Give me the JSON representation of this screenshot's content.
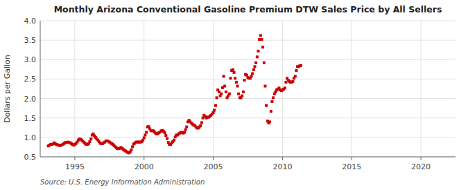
{
  "chart_data": {
    "type": "scatter",
    "title": "Monthly Arizona Conventional Gasoline Premium DTW Sales Price by All Sellers",
    "ylabel": "Dollars per Gallon",
    "source": "Source: U.S. Energy Information Administration",
    "color": "#cc0000",
    "marker": "square",
    "grid": true,
    "xlim": [
      1992.5,
      2022.5
    ],
    "ylim": [
      0.5,
      4.0
    ],
    "xticks": [
      1995,
      2000,
      2005,
      2010,
      2015,
      2020
    ],
    "yticks": [
      0.5,
      {
        "value": 1.0,
        "label": "1.0"
      },
      1.5,
      {
        "value": 2.0,
        "label": "2.0"
      },
      2.5,
      {
        "value": 3.0,
        "label": "3.0"
      },
      3.5,
      {
        "value": 4.0,
        "label": "4.0"
      }
    ],
    "x": [
      1993.08,
      1993.17,
      1993.25,
      1993.33,
      1993.42,
      1993.5,
      1993.58,
      1993.67,
      1993.75,
      1993.83,
      1993.92,
      1994.0,
      1994.08,
      1994.17,
      1994.25,
      1994.33,
      1994.42,
      1994.5,
      1994.58,
      1994.67,
      1994.75,
      1994.83,
      1994.92,
      1995.0,
      1995.08,
      1995.17,
      1995.25,
      1995.33,
      1995.42,
      1995.5,
      1995.58,
      1995.67,
      1995.75,
      1995.83,
      1995.92,
      1996.0,
      1996.08,
      1996.17,
      1996.25,
      1996.33,
      1996.42,
      1996.5,
      1996.58,
      1996.67,
      1996.75,
      1996.83,
      1996.92,
      1997.0,
      1997.08,
      1997.17,
      1997.25,
      1997.33,
      1997.42,
      1997.5,
      1997.58,
      1997.67,
      1997.75,
      1997.83,
      1997.92,
      1998.0,
      1998.08,
      1998.17,
      1998.25,
      1998.33,
      1998.42,
      1998.5,
      1998.58,
      1998.67,
      1998.75,
      1998.83,
      1998.92,
      1999.0,
      1999.08,
      1999.17,
      1999.25,
      1999.33,
      1999.42,
      1999.5,
      1999.58,
      1999.67,
      1999.75,
      1999.83,
      1999.92,
      2000.0,
      2000.08,
      2000.17,
      2000.25,
      2000.33,
      2000.42,
      2000.5,
      2000.58,
      2000.67,
      2000.75,
      2000.83,
      2000.92,
      2001.0,
      2001.08,
      2001.17,
      2001.25,
      2001.33,
      2001.42,
      2001.5,
      2001.58,
      2001.67,
      2001.75,
      2001.83,
      2001.92,
      2002.0,
      2002.08,
      2002.17,
      2002.25,
      2002.33,
      2002.42,
      2002.5,
      2002.58,
      2002.67,
      2002.75,
      2002.83,
      2002.92,
      2003.0,
      2003.08,
      2003.17,
      2003.25,
      2003.33,
      2003.42,
      2003.5,
      2003.58,
      2003.67,
      2003.75,
      2003.83,
      2003.92,
      2004.0,
      2004.08,
      2004.17,
      2004.25,
      2004.33,
      2004.42,
      2004.5,
      2004.58,
      2004.67,
      2004.75,
      2004.83,
      2004.92,
      2005.0,
      2005.08,
      2005.17,
      2005.25,
      2005.33,
      2005.42,
      2005.5,
      2005.58,
      2005.67,
      2005.75,
      2005.83,
      2005.92,
      2006.0,
      2006.08,
      2006.17,
      2006.25,
      2006.33,
      2006.42,
      2006.5,
      2006.58,
      2006.67,
      2006.75,
      2006.83,
      2006.92,
      2007.0,
      2007.08,
      2007.17,
      2007.25,
      2007.33,
      2007.42,
      2007.5,
      2007.58,
      2007.67,
      2007.75,
      2007.83,
      2007.92,
      2008.0,
      2008.08,
      2008.17,
      2008.25,
      2008.33,
      2008.42,
      2008.5,
      2008.58,
      2008.67,
      2008.75,
      2008.83,
      2008.92,
      2009.0,
      2009.08,
      2009.17,
      2009.25,
      2009.33,
      2009.42,
      2009.5,
      2009.58,
      2009.67,
      2009.75,
      2009.83,
      2009.92,
      2010.0,
      2010.08,
      2010.17,
      2010.25,
      2010.33,
      2010.42,
      2010.5,
      2010.58,
      2010.67,
      2010.75,
      2010.83,
      2010.92,
      2011.0,
      2011.08,
      2011.17,
      2011.25,
      2011.33
    ],
    "values": [
      0.78,
      0.8,
      0.82,
      0.82,
      0.83,
      0.86,
      0.84,
      0.82,
      0.81,
      0.8,
      0.79,
      0.8,
      0.81,
      0.83,
      0.85,
      0.87,
      0.87,
      0.88,
      0.87,
      0.86,
      0.84,
      0.82,
      0.8,
      0.82,
      0.84,
      0.88,
      0.93,
      0.96,
      0.95,
      0.93,
      0.9,
      0.87,
      0.84,
      0.82,
      0.82,
      0.84,
      0.89,
      0.96,
      1.06,
      1.09,
      1.04,
      1.0,
      0.96,
      0.93,
      0.89,
      0.85,
      0.84,
      0.84,
      0.86,
      0.88,
      0.91,
      0.91,
      0.9,
      0.88,
      0.86,
      0.84,
      0.82,
      0.79,
      0.76,
      0.73,
      0.71,
      0.71,
      0.72,
      0.74,
      0.72,
      0.69,
      0.67,
      0.65,
      0.63,
      0.61,
      0.6,
      0.63,
      0.68,
      0.76,
      0.83,
      0.85,
      0.88,
      0.88,
      0.88,
      0.88,
      0.88,
      0.89,
      0.93,
      0.99,
      1.06,
      1.13,
      1.27,
      1.28,
      1.22,
      1.17,
      1.17,
      1.17,
      1.14,
      1.11,
      1.09,
      1.1,
      1.12,
      1.14,
      1.17,
      1.18,
      1.15,
      1.12,
      1.05,
      0.97,
      0.87,
      0.82,
      0.82,
      0.86,
      0.89,
      0.93,
      1.01,
      1.06,
      1.06,
      1.09,
      1.11,
      1.13,
      1.13,
      1.11,
      1.13,
      1.2,
      1.27,
      1.4,
      1.44,
      1.4,
      1.37,
      1.34,
      1.32,
      1.3,
      1.27,
      1.24,
      1.24,
      1.27,
      1.3,
      1.38,
      1.5,
      1.57,
      1.54,
      1.5,
      1.52,
      1.52,
      1.54,
      1.57,
      1.6,
      1.64,
      1.7,
      1.82,
      2.02,
      2.22,
      2.17,
      2.07,
      2.12,
      2.28,
      2.57,
      2.32,
      2.17,
      2.02,
      2.07,
      2.12,
      2.52,
      2.72,
      2.74,
      2.67,
      2.52,
      2.42,
      2.32,
      2.12,
      2.02,
      2.02,
      2.07,
      2.17,
      2.47,
      2.62,
      2.6,
      2.54,
      2.52,
      2.52,
      2.57,
      2.64,
      2.74,
      2.82,
      2.92,
      3.07,
      3.22,
      3.52,
      3.62,
      3.52,
      3.32,
      2.92,
      2.32,
      1.82,
      1.42,
      1.37,
      1.4,
      1.67,
      1.92,
      2.02,
      2.12,
      2.17,
      2.22,
      2.24,
      2.27,
      2.22,
      2.2,
      2.22,
      2.24,
      2.27,
      2.42,
      2.52,
      2.47,
      2.44,
      2.42,
      2.42,
      2.44,
      2.52,
      2.57,
      2.72,
      2.82,
      2.82,
      2.84,
      2.85
    ]
  }
}
